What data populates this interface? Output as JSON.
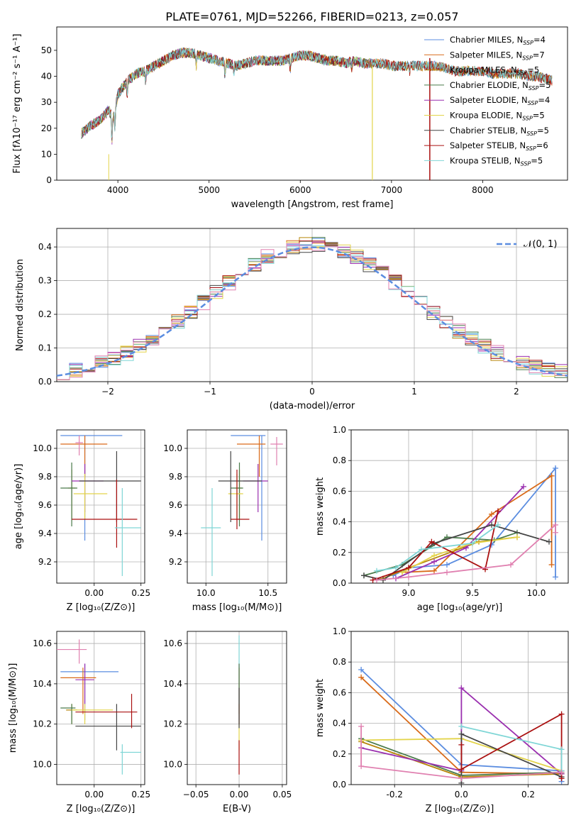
{
  "figure": {
    "suptitle": "PLATE=0761, MJD=52266, FIBERID=0213, z=0.057"
  },
  "colors": [
    "#5b8de0",
    "#d96b1a",
    "#b8860b",
    "#4a7a4a",
    "#9a2faf",
    "#e3d44a",
    "#444444",
    "#aa1010",
    "#7fd6d6"
  ],
  "chart_data": [
    {
      "id": "spectrum",
      "type": "line",
      "xlabel": "wavelength [Angstrom, rest frame]",
      "ylabel": "Flux [fλ10⁻¹⁷ erg cm⁻² s⁻¹ A⁻¹]",
      "xlim": [
        3330,
        8930
      ],
      "ylim": [
        0,
        59
      ],
      "xticks": [
        4000,
        5000,
        6000,
        7000,
        8000
      ],
      "yticks": [
        0,
        10,
        20,
        30,
        40,
        50
      ],
      "continuum": {
        "x": [
          3600,
          3700,
          3800,
          3900,
          3950,
          4000,
          4100,
          4200,
          4300,
          4400,
          4500,
          4600,
          4700,
          4800,
          4900,
          5000,
          5100,
          5200,
          5300,
          5400,
          5500,
          5600,
          5700,
          5800,
          5900,
          6000,
          6100,
          6200,
          6300,
          6400,
          6500,
          6600,
          6700,
          6800,
          6900,
          7000,
          7100,
          7200,
          7300,
          7400,
          7500,
          7600,
          7700,
          7800,
          7900,
          8000,
          8100,
          8200,
          8300,
          8400,
          8500,
          8600,
          8700,
          8800
        ],
        "y": [
          18,
          21,
          23,
          27,
          24,
          33,
          38,
          41,
          42,
          44,
          46,
          48,
          49,
          49,
          48,
          47,
          46,
          45,
          44,
          45,
          46,
          46,
          46,
          46,
          47,
          48,
          48,
          47,
          46,
          46,
          45,
          46,
          45,
          45,
          45,
          44,
          44,
          44,
          44,
          44,
          44,
          43,
          42,
          42,
          42,
          42,
          41,
          41,
          41,
          41,
          40,
          40,
          39,
          38
        ]
      },
      "series": [
        {
          "name": "Chabrier MILES, N",
          "sub": "SSP",
          "val": "=4",
          "xmax": 8760
        },
        {
          "name": "Salpeter MILES, N",
          "sub": "SSP",
          "val": "=7",
          "xmax": 8760
        },
        {
          "name": "Kroupa MILES, N",
          "sub": "SSP",
          "val": "=5",
          "xmax": 8760
        },
        {
          "name": "Chabrier ELODIE, N",
          "sub": "SSP",
          "val": "=5",
          "xmax": 6790
        },
        {
          "name": "Salpeter ELODIE, N",
          "sub": "SSP",
          "val": "=4",
          "xmax": 6790
        },
        {
          "name": "Kroupa ELODIE, N",
          "sub": "SSP",
          "val": "=5",
          "xmax": 6790
        },
        {
          "name": "Chabrier STELIB, N",
          "sub": "SSP",
          "val": "=5",
          "xmax": 8760
        },
        {
          "name": "Salpeter STELIB, N",
          "sub": "SSP",
          "val": "=6",
          "xmax": 8760
        },
        {
          "name": "Kroupa STELIB, N",
          "sub": "SSP",
          "val": "=5",
          "xmax": 8760
        }
      ]
    },
    {
      "id": "residuals",
      "type": "line",
      "xlabel": "(data-model)/error",
      "ylabel": "Normed distribution",
      "xlim": [
        -2.5,
        2.5
      ],
      "ylim": [
        0,
        0.455
      ],
      "xticks": [
        -2,
        -1,
        0,
        1,
        2
      ],
      "yticks": [
        0.0,
        0.1,
        0.2,
        0.3,
        0.4
      ],
      "gaussian_label": "𝒩(0, 1)"
    },
    {
      "id": "age-vs-z",
      "type": "scatter",
      "xlabel": "Z [log₁₀(Z/Z⊙)]",
      "ylabel": "age  [log₁₀(age/yr)]",
      "xlim": [
        -0.2,
        0.27
      ],
      "ylim": [
        9.05,
        10.13
      ],
      "xticks": [
        -0.25,
        0.0,
        0.25
      ],
      "yticks": [
        9.2,
        9.4,
        9.6,
        9.8,
        10.0
      ],
      "points": [
        {
          "x": -0.05,
          "y": 10.09,
          "ex": [
            -0.18,
            0.15
          ],
          "ey": [
            9.35,
            10.09
          ]
        },
        {
          "x": -0.05,
          "y": 10.03,
          "ex": [
            -0.18,
            0.07
          ],
          "ey": [
            9.8,
            10.09
          ]
        },
        {
          "x": -0.12,
          "y": 9.72,
          "ex": [
            -0.14,
            -0.1
          ],
          "ey": [
            9.5,
            9.85
          ]
        },
        {
          "x": -0.12,
          "y": 9.72,
          "ex": [
            -0.18,
            -0.09
          ],
          "ey": [
            9.45,
            9.9
          ]
        },
        {
          "x": -0.05,
          "y": 9.77,
          "ex": [
            -0.12,
            0.05
          ],
          "ey": [
            9.55,
            9.89
          ]
        },
        {
          "x": -0.05,
          "y": 9.68,
          "ex": [
            -0.11,
            0.07
          ],
          "ey": [
            9.5,
            9.82
          ]
        },
        {
          "x": 0.12,
          "y": 9.77,
          "ex": [
            -0.08,
            0.25
          ],
          "ey": [
            9.48,
            9.98
          ]
        },
        {
          "x": 0.12,
          "y": 9.5,
          "ex": [
            -0.12,
            0.23
          ],
          "ey": [
            9.3,
            9.78
          ]
        },
        {
          "x": 0.15,
          "y": 9.44,
          "ex": [
            0.11,
            0.25
          ],
          "ey": [
            9.1,
            9.72
          ]
        },
        {
          "x": -0.08,
          "y": 10.04,
          "ex": [
            -0.1,
            -0.06
          ],
          "ey": [
            9.95,
            10.09
          ]
        }
      ]
    },
    {
      "id": "age-vs-mass",
      "type": "scatter",
      "xlabel": "mass [log₁₀(M/M⊙)]",
      "ylabel": "",
      "xlim": [
        9.85,
        10.65
      ],
      "ylim": [
        9.05,
        10.13
      ],
      "xticks": [
        10.0,
        10.5
      ],
      "yticks": [
        9.2,
        9.4,
        9.6,
        9.8,
        10.0
      ],
      "points": [
        {
          "x": 10.45,
          "y": 10.09,
          "ex": [
            10.2,
            10.48
          ],
          "ey": [
            9.35,
            10.09
          ]
        },
        {
          "x": 10.43,
          "y": 10.03,
          "ex": [
            10.25,
            10.48
          ],
          "ey": [
            9.8,
            10.09
          ]
        },
        {
          "x": 10.27,
          "y": 9.72,
          "ex": [
            10.24,
            10.29
          ],
          "ey": [
            9.5,
            9.85
          ]
        },
        {
          "x": 10.27,
          "y": 9.72,
          "ex": [
            10.2,
            10.3
          ],
          "ey": [
            9.45,
            9.9
          ]
        },
        {
          "x": 10.42,
          "y": 9.77,
          "ex": [
            10.3,
            10.5
          ],
          "ey": [
            9.55,
            9.89
          ]
        },
        {
          "x": 10.25,
          "y": 9.68,
          "ex": [
            10.18,
            10.3
          ],
          "ey": [
            9.5,
            9.82
          ]
        },
        {
          "x": 10.2,
          "y": 9.77,
          "ex": [
            10.1,
            10.45
          ],
          "ey": [
            9.48,
            9.98
          ]
        },
        {
          "x": 10.25,
          "y": 9.5,
          "ex": [
            10.2,
            10.35
          ],
          "ey": [
            9.43,
            9.85
          ]
        },
        {
          "x": 10.05,
          "y": 9.44,
          "ex": [
            9.96,
            10.12
          ],
          "ey": [
            9.1,
            9.72
          ]
        },
        {
          "x": 10.57,
          "y": 10.03,
          "ex": [
            10.52,
            10.62
          ],
          "ey": [
            9.88,
            10.08
          ]
        }
      ]
    },
    {
      "id": "weight-vs-age",
      "type": "line",
      "xlabel": "age  [log₁₀(age/yr)]",
      "ylabel": "mass weight",
      "xlim": [
        8.55,
        10.25
      ],
      "ylim": [
        0.0,
        1.0
      ],
      "xticks": [
        9.0,
        9.5,
        10.0
      ],
      "yticks": [
        0.0,
        0.2,
        0.4,
        0.6,
        0.8,
        1.0
      ],
      "series": [
        {
          "x": [
            8.88,
            9.0,
            9.3,
            9.65,
            10.15,
            10.15
          ],
          "y": [
            0.05,
            0.1,
            0.12,
            0.25,
            0.75,
            0.04
          ]
        },
        {
          "x": [
            8.95,
            9.2,
            9.65,
            10.12,
            10.12
          ],
          "y": [
            0.07,
            0.08,
            0.45,
            0.7,
            0.12
          ]
        },
        {
          "x": [
            8.8,
            9.0,
            9.55,
            9.85
          ],
          "y": [
            0.03,
            0.1,
            0.27,
            0.3
          ]
        },
        {
          "x": [
            8.65,
            8.95,
            9.3,
            9.67,
            9.85
          ],
          "y": [
            0.05,
            0.12,
            0.3,
            0.28,
            0.33
          ]
        },
        {
          "x": [
            8.9,
            9.2,
            9.45,
            9.9
          ],
          "y": [
            0.03,
            0.14,
            0.23,
            0.63
          ]
        },
        {
          "x": [
            8.95,
            9.2,
            9.5,
            9.85
          ],
          "y": [
            0.07,
            0.18,
            0.26,
            0.3
          ]
        },
        {
          "x": [
            8.65,
            8.8,
            9.2,
            9.65,
            10.1
          ],
          "y": [
            0.05,
            0.02,
            0.26,
            0.38,
            0.27
          ]
        },
        {
          "x": [
            8.72,
            9.0,
            9.18,
            9.6,
            9.7
          ],
          "y": [
            0.02,
            0.1,
            0.27,
            0.09,
            0.47
          ]
        },
        {
          "x": [
            8.75,
            8.9,
            9.1,
            9.5,
            9.7
          ],
          "y": [
            0.08,
            0.1,
            0.22,
            0.26,
            0.38
          ]
        },
        {
          "x": [
            8.75,
            9.0,
            9.3,
            9.8,
            10.15,
            10.15
          ],
          "y": [
            0.02,
            0.04,
            0.07,
            0.12,
            0.38,
            0.33
          ]
        }
      ]
    },
    {
      "id": "mass-vs-z",
      "type": "scatter",
      "xlabel": "Z [log₁₀(Z/Z⊙)]",
      "ylabel": "mass [log₁₀(M/M⊙)]",
      "xlim": [
        -0.2,
        0.27
      ],
      "ylim": [
        9.9,
        10.66
      ],
      "xticks": [
        -0.25,
        0.0,
        0.25
      ],
      "yticks": [
        10.0,
        10.2,
        10.4,
        10.6
      ],
      "points": [
        {
          "x": -0.05,
          "y": 10.46,
          "ex": [
            -0.18,
            0.13
          ],
          "ey": [
            10.22,
            10.5
          ]
        },
        {
          "x": -0.06,
          "y": 10.43,
          "ex": [
            -0.18,
            0.01
          ],
          "ey": [
            10.25,
            10.48
          ]
        },
        {
          "x": -0.12,
          "y": 10.27,
          "ex": [
            -0.15,
            -0.09
          ],
          "ey": [
            10.2,
            10.3
          ]
        },
        {
          "x": -0.12,
          "y": 10.28,
          "ex": [
            -0.18,
            -0.1
          ],
          "ey": [
            10.2,
            10.3
          ]
        },
        {
          "x": -0.05,
          "y": 10.42,
          "ex": [
            -0.1,
            0.0
          ],
          "ey": [
            10.3,
            10.5
          ]
        },
        {
          "x": -0.05,
          "y": 10.27,
          "ex": [
            -0.12,
            0.1
          ],
          "ey": [
            10.2,
            10.3
          ]
        },
        {
          "x": 0.12,
          "y": 10.19,
          "ex": [
            -0.1,
            0.25
          ],
          "ey": [
            10.07,
            10.3
          ]
        },
        {
          "x": 0.2,
          "y": 10.26,
          "ex": [
            -0.1,
            0.23
          ],
          "ey": [
            10.18,
            10.35
          ]
        },
        {
          "x": 0.15,
          "y": 10.06,
          "ex": [
            0.14,
            0.25
          ],
          "ey": [
            9.95,
            10.1
          ]
        },
        {
          "x": -0.08,
          "y": 10.57,
          "ex": [
            -0.2,
            -0.04
          ],
          "ey": [
            10.5,
            10.62
          ]
        }
      ]
    },
    {
      "id": "mass-vs-ebv",
      "type": "scatter",
      "xlabel": "E(B-V)",
      "ylabel": "",
      "xlim": [
        -0.06,
        0.055
      ],
      "ylim": [
        9.9,
        10.66
      ],
      "xticks": [
        -0.05,
        0.0,
        0.05
      ],
      "yticks": [
        10.0,
        10.2,
        10.4,
        10.6
      ],
      "points": [
        {
          "x": 0.0,
          "y": 10.46,
          "ey": [
            10.22,
            10.5
          ]
        },
        {
          "x": 0.0,
          "y": 10.43,
          "ey": [
            10.25,
            10.48
          ]
        },
        {
          "x": 0.0,
          "y": 10.28,
          "ey": [
            10.2,
            10.3
          ]
        },
        {
          "x": 0.0,
          "y": 10.42,
          "ey": [
            10.3,
            10.5
          ]
        },
        {
          "x": 0.0,
          "y": 10.27,
          "ey": [
            10.2,
            10.3
          ]
        },
        {
          "x": 0.0,
          "y": 10.19,
          "ey": [
            10.07,
            10.3
          ]
        },
        {
          "x": 0.0,
          "y": 10.26,
          "ey": [
            10.18,
            10.38
          ]
        },
        {
          "x": 0.0,
          "y": 10.06,
          "ey": [
            9.95,
            10.12
          ]
        },
        {
          "x": 0.0,
          "y": 10.57,
          "ey": [
            10.5,
            10.64
          ]
        }
      ]
    },
    {
      "id": "weight-vs-z",
      "type": "line",
      "xlabel": "Z [log₁₀(Z/Z⊙)]",
      "ylabel": "mass weight",
      "xlim": [
        -0.33,
        0.32
      ],
      "ylim": [
        0.0,
        1.0
      ],
      "xticks": [
        -0.2,
        0.0,
        0.2
      ],
      "yticks": [
        0.0,
        0.2,
        0.4,
        0.6,
        0.8,
        1.0
      ],
      "series": [
        {
          "x": [
            -0.3,
            0.0,
            0.3,
            0.3
          ],
          "y": [
            0.75,
            0.13,
            0.09,
            0.02
          ]
        },
        {
          "x": [
            -0.3,
            0.0,
            0.3
          ],
          "y": [
            0.7,
            0.08,
            0.07
          ]
        },
        {
          "x": [
            -0.3,
            0.0,
            0.3
          ],
          "y": [
            0.28,
            0.05,
            0.07
          ]
        },
        {
          "x": [
            -0.3,
            0.0,
            0.3
          ],
          "y": [
            0.3,
            0.06,
            0.08
          ]
        },
        {
          "x": [
            -0.3,
            0.0,
            0.0,
            0.3
          ],
          "y": [
            0.24,
            0.09,
            0.63,
            0.07
          ]
        },
        {
          "x": [
            -0.3,
            0.0,
            0.3
          ],
          "y": [
            0.29,
            0.3,
            0.09
          ]
        },
        {
          "x": [
            0.0,
            0.0,
            0.3
          ],
          "y": [
            0.01,
            0.33,
            0.05
          ]
        },
        {
          "x": [
            0.0,
            0.0,
            0.3,
            0.3
          ],
          "y": [
            0.26,
            0.1,
            0.46,
            0.04
          ]
        },
        {
          "x": [
            0.0,
            0.3,
            0.3
          ],
          "y": [
            0.38,
            0.23,
            0.09
          ]
        },
        {
          "x": [
            -0.3,
            -0.3,
            0.0,
            0.3
          ],
          "y": [
            0.38,
            0.12,
            0.04,
            0.08
          ]
        }
      ]
    }
  ]
}
